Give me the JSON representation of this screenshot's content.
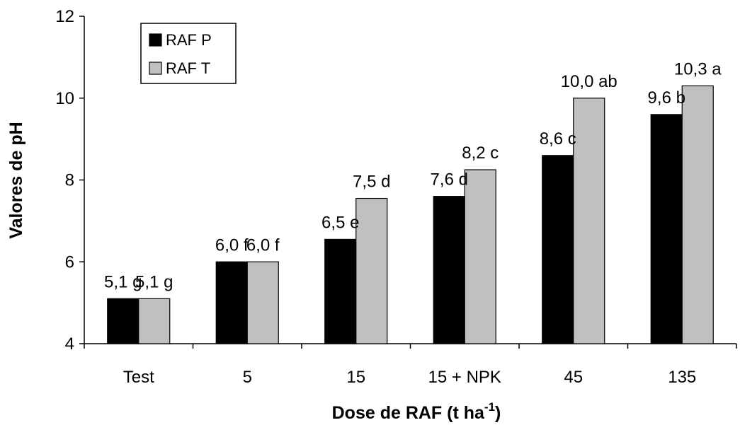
{
  "chart_data": {
    "type": "bar",
    "title": "",
    "xlabel": "Dose de RAF (t ha",
    "xlabel_sup": "-1",
    "xlabel_suffix": ")",
    "ylabel": "Valores de pH",
    "ylim": [
      4,
      12
    ],
    "yticks": [
      "4",
      "6",
      "8",
      "10",
      "12"
    ],
    "ytick_values": [
      4,
      6,
      8,
      10,
      12
    ],
    "categories": [
      "Test",
      "5",
      "15",
      "15 + NPK",
      "45",
      "135"
    ],
    "series": [
      {
        "name": "RAF P",
        "color": "#000000",
        "values": [
          5.1,
          6.0,
          6.55,
          7.6,
          8.6,
          9.6
        ],
        "labels": [
          "5,1 g",
          "6,0 f",
          "6,5 e",
          "7,6 d",
          "8,6 c",
          "9,6 b"
        ]
      },
      {
        "name": "RAF T",
        "color": "#c0c0c0",
        "values": [
          5.1,
          6.0,
          7.55,
          8.25,
          10.0,
          10.3
        ],
        "labels": [
          "5,1 g",
          "6,0 f",
          "7,5 d",
          "8,2 c",
          "10,0 ab",
          "10,3 a"
        ]
      }
    ],
    "grid": false,
    "legend_position": "top-left"
  }
}
